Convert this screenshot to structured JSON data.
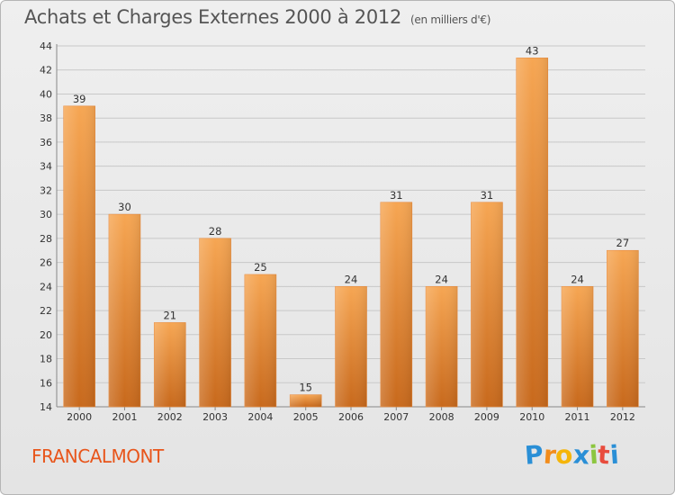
{
  "header": {
    "title": "Achats et Charges Externes 2000 à 2012",
    "unit": "(en milliers d'€)"
  },
  "footer": {
    "commune": "FRANCALMONT",
    "logo_letters": [
      "P",
      "r",
      "o",
      "x",
      "i",
      "t",
      "i"
    ],
    "logo_colors": [
      "#2a8fd6",
      "#f28c1b",
      "#f5b50a",
      "#2a8fd6",
      "#8cc63f",
      "#e84c3d",
      "#2a8fd6"
    ]
  },
  "colors": {
    "bar_light": "#f6a653",
    "bar_dark": "#c8691c",
    "grid": "#c8c8c8",
    "axis_text": "#333333"
  },
  "chart_data": {
    "type": "bar",
    "title": "Achats et Charges Externes 2000 à 2012",
    "subtitle": "(en milliers d'€)",
    "categories": [
      "2000",
      "2001",
      "2002",
      "2003",
      "2004",
      "2005",
      "2006",
      "2007",
      "2008",
      "2009",
      "2010",
      "2011",
      "2012"
    ],
    "values": [
      39,
      30,
      21,
      28,
      25,
      15,
      24,
      31,
      24,
      31,
      43,
      24,
      27
    ],
    "ylim": [
      14,
      44
    ],
    "yticks": [
      14,
      16,
      18,
      20,
      22,
      24,
      26,
      28,
      30,
      32,
      34,
      36,
      38,
      40,
      42,
      44
    ],
    "grid": true,
    "data_labels": true
  }
}
